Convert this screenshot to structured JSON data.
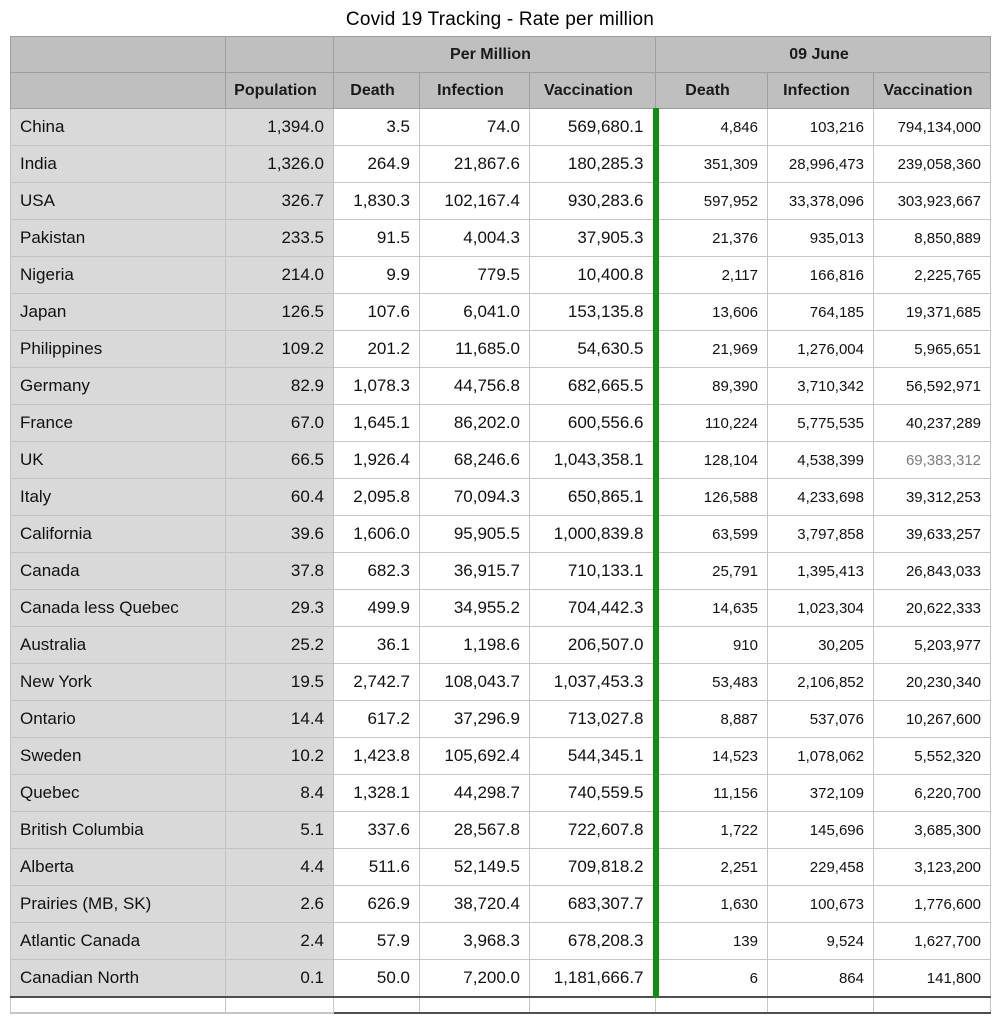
{
  "title": "Covid 19 Tracking - Rate per million",
  "colors": {
    "header_bg": "#bfbfbf",
    "label_column_bg": "#d9d9d9",
    "separator_green": "#0f8e0f",
    "muted_text": "#7d7d7d"
  },
  "table": {
    "group_headers": {
      "per_million": "Per Million",
      "june": "09 June"
    },
    "column_headers": [
      "",
      "Population",
      "Death",
      "Infection",
      "Vaccination",
      "Death",
      "Infection",
      "Vaccination"
    ],
    "rows": [
      {
        "name": "China",
        "population": "1,394.0",
        "pm_death": "3.5",
        "pm_infection": "74.0",
        "pm_vaccination": "569,680.1",
        "june_death": "4,846",
        "june_infection": "103,216",
        "june_vaccination": "794,134,000"
      },
      {
        "name": "India",
        "population": "1,326.0",
        "pm_death": "264.9",
        "pm_infection": "21,867.6",
        "pm_vaccination": "180,285.3",
        "june_death": "351,309",
        "june_infection": "28,996,473",
        "june_vaccination": "239,058,360"
      },
      {
        "name": "USA",
        "population": "326.7",
        "pm_death": "1,830.3",
        "pm_infection": "102,167.4",
        "pm_vaccination": "930,283.6",
        "june_death": "597,952",
        "june_infection": "33,378,096",
        "june_vaccination": "303,923,667"
      },
      {
        "name": "Pakistan",
        "population": "233.5",
        "pm_death": "91.5",
        "pm_infection": "4,004.3",
        "pm_vaccination": "37,905.3",
        "june_death": "21,376",
        "june_infection": "935,013",
        "june_vaccination": "8,850,889"
      },
      {
        "name": "Nigeria",
        "population": "214.0",
        "pm_death": "9.9",
        "pm_infection": "779.5",
        "pm_vaccination": "10,400.8",
        "june_death": "2,117",
        "june_infection": "166,816",
        "june_vaccination": "2,225,765"
      },
      {
        "name": "Japan",
        "population": "126.5",
        "pm_death": "107.6",
        "pm_infection": "6,041.0",
        "pm_vaccination": "153,135.8",
        "june_death": "13,606",
        "june_infection": "764,185",
        "june_vaccination": "19,371,685"
      },
      {
        "name": "Philippines",
        "population": "109.2",
        "pm_death": "201.2",
        "pm_infection": "11,685.0",
        "pm_vaccination": "54,630.5",
        "june_death": "21,969",
        "june_infection": "1,276,004",
        "june_vaccination": "5,965,651"
      },
      {
        "name": "Germany",
        "population": "82.9",
        "pm_death": "1,078.3",
        "pm_infection": "44,756.8",
        "pm_vaccination": "682,665.5",
        "june_death": "89,390",
        "june_infection": "3,710,342",
        "june_vaccination": "56,592,971"
      },
      {
        "name": "France",
        "population": "67.0",
        "pm_death": "1,645.1",
        "pm_infection": "86,202.0",
        "pm_vaccination": "600,556.6",
        "june_death": "110,224",
        "june_infection": "5,775,535",
        "june_vaccination": "40,237,289"
      },
      {
        "name": "UK",
        "population": "66.5",
        "pm_death": "1,926.4",
        "pm_infection": "68,246.6",
        "pm_vaccination": "1,043,358.1",
        "june_death": "128,104",
        "june_infection": "4,538,399",
        "june_vaccination": "69,383,312",
        "muted_columns": [
          "june_vaccination"
        ]
      },
      {
        "name": "Italy",
        "population": "60.4",
        "pm_death": "2,095.8",
        "pm_infection": "70,094.3",
        "pm_vaccination": "650,865.1",
        "june_death": "126,588",
        "june_infection": "4,233,698",
        "june_vaccination": "39,312,253"
      },
      {
        "name": "California",
        "population": "39.6",
        "pm_death": "1,606.0",
        "pm_infection": "95,905.5",
        "pm_vaccination": "1,000,839.8",
        "june_death": "63,599",
        "june_infection": "3,797,858",
        "june_vaccination": "39,633,257"
      },
      {
        "name": "Canada",
        "population": "37.8",
        "pm_death": "682.3",
        "pm_infection": "36,915.7",
        "pm_vaccination": "710,133.1",
        "june_death": "25,791",
        "june_infection": "1,395,413",
        "june_vaccination": "26,843,033"
      },
      {
        "name": "Canada less Quebec",
        "population": "29.3",
        "pm_death": "499.9",
        "pm_infection": "34,955.2",
        "pm_vaccination": "704,442.3",
        "june_death": "14,635",
        "june_infection": "1,023,304",
        "june_vaccination": "20,622,333"
      },
      {
        "name": "Australia",
        "population": "25.2",
        "pm_death": "36.1",
        "pm_infection": "1,198.6",
        "pm_vaccination": "206,507.0",
        "june_death": "910",
        "june_infection": "30,205",
        "june_vaccination": "5,203,977"
      },
      {
        "name": "New York",
        "population": "19.5",
        "pm_death": "2,742.7",
        "pm_infection": "108,043.7",
        "pm_vaccination": "1,037,453.3",
        "june_death": "53,483",
        "june_infection": "2,106,852",
        "june_vaccination": "20,230,340"
      },
      {
        "name": "Ontario",
        "population": "14.4",
        "pm_death": "617.2",
        "pm_infection": "37,296.9",
        "pm_vaccination": "713,027.8",
        "june_death": "8,887",
        "june_infection": "537,076",
        "june_vaccination": "10,267,600"
      },
      {
        "name": "Sweden",
        "population": "10.2",
        "pm_death": "1,423.8",
        "pm_infection": "105,692.4",
        "pm_vaccination": "544,345.1",
        "june_death": "14,523",
        "june_infection": "1,078,062",
        "june_vaccination": "5,552,320"
      },
      {
        "name": "Quebec",
        "population": "8.4",
        "pm_death": "1,328.1",
        "pm_infection": "44,298.7",
        "pm_vaccination": "740,559.5",
        "june_death": "11,156",
        "june_infection": "372,109",
        "june_vaccination": "6,220,700"
      },
      {
        "name": "British Columbia",
        "population": "5.1",
        "pm_death": "337.6",
        "pm_infection": "28,567.8",
        "pm_vaccination": "722,607.8",
        "june_death": "1,722",
        "june_infection": "145,696",
        "june_vaccination": "3,685,300"
      },
      {
        "name": "Alberta",
        "population": "4.4",
        "pm_death": "511.6",
        "pm_infection": "52,149.5",
        "pm_vaccination": "709,818.2",
        "june_death": "2,251",
        "june_infection": "229,458",
        "june_vaccination": "3,123,200"
      },
      {
        "name": "Prairies (MB, SK)",
        "population": "2.6",
        "pm_death": "626.9",
        "pm_infection": "38,720.4",
        "pm_vaccination": "683,307.7",
        "june_death": "1,630",
        "june_infection": "100,673",
        "june_vaccination": "1,776,600"
      },
      {
        "name": "Atlantic Canada",
        "population": "2.4",
        "pm_death": "57.9",
        "pm_infection": "3,968.3",
        "pm_vaccination": "678,208.3",
        "june_death": "139",
        "june_infection": "9,524",
        "june_vaccination": "1,627,700"
      },
      {
        "name": "Canadian North",
        "population": "0.1",
        "pm_death": "50.0",
        "pm_infection": "7,200.0",
        "pm_vaccination": "1,181,666.7",
        "june_death": "6",
        "june_infection": "864",
        "june_vaccination": "141,800"
      }
    ]
  }
}
